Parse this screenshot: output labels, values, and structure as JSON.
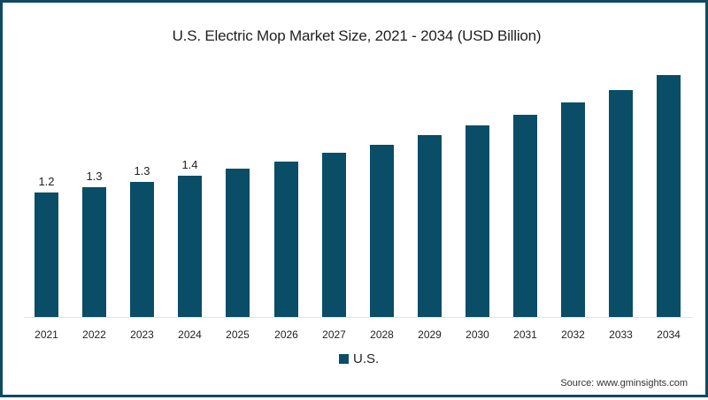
{
  "chart_data": {
    "type": "bar",
    "title": "U.S. Electric Mop Market Size, 2021 - 2034 (USD Billion)",
    "xlabel": "",
    "ylabel": "USD Billion",
    "categories": [
      "2021",
      "2022",
      "2023",
      "2024",
      "2025",
      "2026",
      "2027",
      "2028",
      "2029",
      "2030",
      "2031",
      "2032",
      "2033",
      "2034"
    ],
    "series": [
      {
        "name": "U.S.",
        "color": "#0a4d66",
        "values": [
          1.2,
          1.25,
          1.3,
          1.36,
          1.43,
          1.5,
          1.58,
          1.66,
          1.75,
          1.85,
          1.95,
          2.07,
          2.19,
          2.33
        ]
      }
    ],
    "data_labels": {
      "2021": "1.2",
      "2022": "1.3",
      "2023": "1.3",
      "2024": "1.4"
    },
    "ylim": [
      0,
      2.4
    ],
    "grid": false,
    "legend_position": "bottom"
  },
  "title": "U.S. Electric Mop Market Size, 2021 - 2034 (USD Billion)",
  "legend": {
    "label": "U.S."
  },
  "source": "Source: www.gminsights.com",
  "colors": {
    "bar": "#0a4d66",
    "border": "#0e4a63"
  }
}
